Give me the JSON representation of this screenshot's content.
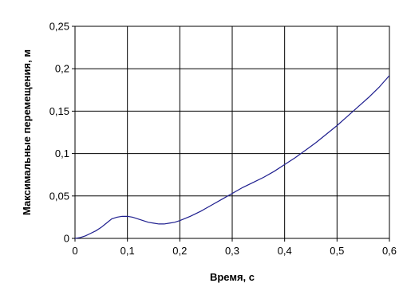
{
  "chart_data": {
    "type": "line",
    "title": "",
    "xlabel": "Время, с",
    "ylabel": "Максимальные перемещения, м",
    "xlim": [
      0,
      0.6
    ],
    "ylim": [
      0,
      0.25
    ],
    "x_ticks": [
      "0",
      "0,1",
      "0,2",
      "0,3",
      "0,4",
      "0,5",
      "0,6"
    ],
    "y_ticks": [
      "0",
      "0,05",
      "0,1",
      "0,15",
      "0,2",
      "0,25"
    ],
    "grid": true,
    "legend": "none",
    "series": [
      {
        "color": "#1f1f8f",
        "x": [
          0,
          0.01,
          0.02,
          0.03,
          0.04,
          0.05,
          0.06,
          0.07,
          0.08,
          0.09,
          0.1,
          0.11,
          0.12,
          0.13,
          0.14,
          0.15,
          0.16,
          0.17,
          0.18,
          0.19,
          0.2,
          0.22,
          0.24,
          0.26,
          0.28,
          0.3,
          0.32,
          0.34,
          0.36,
          0.38,
          0.4,
          0.42,
          0.44,
          0.46,
          0.48,
          0.5,
          0.52,
          0.54,
          0.56,
          0.58,
          0.6
        ],
        "y": [
          0,
          0.001,
          0.003,
          0.006,
          0.009,
          0.013,
          0.018,
          0.023,
          0.025,
          0.026,
          0.026,
          0.025,
          0.023,
          0.021,
          0.019,
          0.018,
          0.017,
          0.017,
          0.018,
          0.019,
          0.021,
          0.026,
          0.032,
          0.039,
          0.046,
          0.053,
          0.06,
          0.066,
          0.072,
          0.079,
          0.087,
          0.095,
          0.104,
          0.113,
          0.123,
          0.133,
          0.144,
          0.155,
          0.166,
          0.178,
          0.192
        ]
      }
    ]
  },
  "colors": {
    "grid": "#000000",
    "line": "#1f1f8f"
  }
}
